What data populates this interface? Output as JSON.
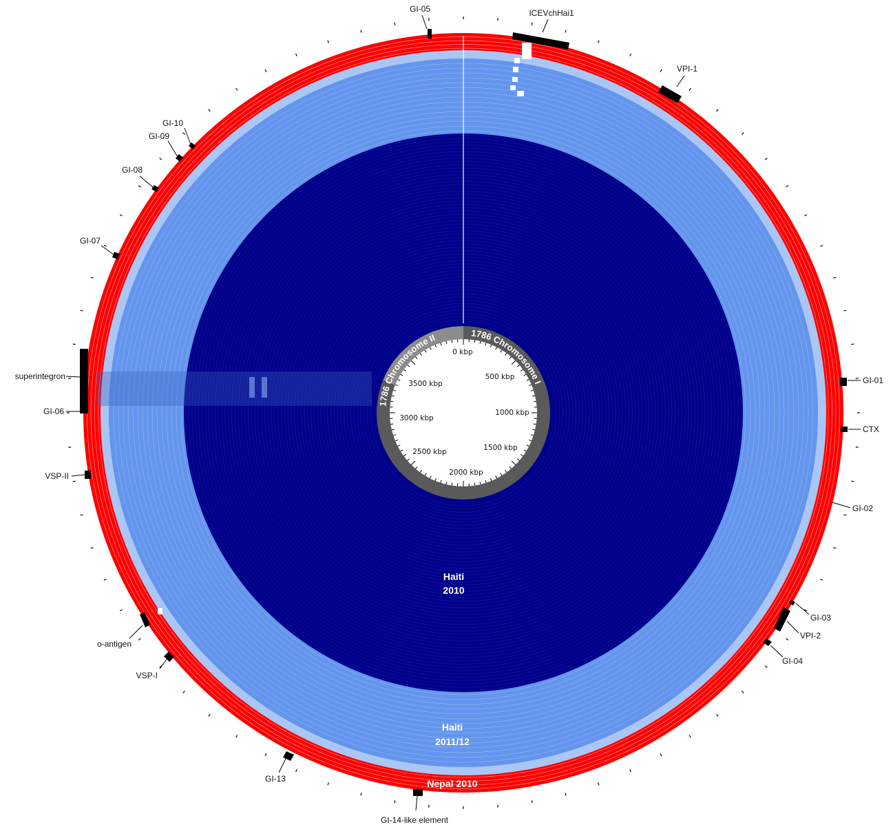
{
  "colors": {
    "haiti_2010": "#00008b",
    "haiti_2011_12": "#6495ed",
    "nepal_2010": "#ff0000",
    "chromosome_1": "#5a5a5a",
    "chromosome_2": "#8c8c8c",
    "background": "#ffffff",
    "markers": "#000000"
  },
  "chromosomes": [
    {
      "id": "chromosome_1",
      "label": "1786 Chromosome I"
    },
    {
      "id": "chromosome_2",
      "label": "1786 Chromosome II"
    }
  ],
  "scale_labels": [
    "0 kbp",
    "500 kbp",
    "1000 kbp",
    "1500 kbp",
    "2000 kbp",
    "2500 kbp",
    "3000 kbp",
    "3500 kbp"
  ],
  "groups": [
    {
      "id": "haiti_2010",
      "label_line1": "Haiti",
      "label_line2": "2010"
    },
    {
      "id": "haiti_2011_12",
      "label_line1": "Haiti",
      "label_line2": "2011/12"
    },
    {
      "id": "nepal_2010",
      "label_line1": "Nepal 2010",
      "label_line2": ""
    }
  ],
  "regions": [
    {
      "label": "GI-05"
    },
    {
      "label": "ICEVchHai1"
    },
    {
      "label": "VPI-1"
    },
    {
      "label": "GI-01"
    },
    {
      "label": "CTX"
    },
    {
      "label": "GI-02"
    },
    {
      "label": "GI-03"
    },
    {
      "label": "VPI-2"
    },
    {
      "label": "GI-04"
    },
    {
      "label": "GI-14-like element"
    },
    {
      "label": "GI-13"
    },
    {
      "label": "VSP-I"
    },
    {
      "label": "o-antigen"
    },
    {
      "label": "VSP-II"
    },
    {
      "label": "GI-06"
    },
    {
      "label": "superintegron"
    },
    {
      "label": "GI-07"
    },
    {
      "label": "GI-08"
    },
    {
      "label": "GI-09"
    },
    {
      "label": "GI-10"
    }
  ]
}
